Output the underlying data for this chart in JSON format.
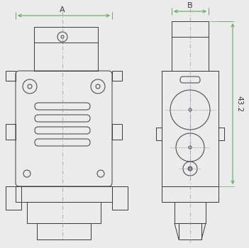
{
  "bg_color": "#ebebeb",
  "line_color": "#3a3a3a",
  "dim_line_color": "#5aaa5a",
  "center_line_color": "#9090a8",
  "label_A": "A",
  "label_B": "B",
  "label_43_2": "43.2",
  "figsize": [
    3.51,
    3.5
  ],
  "dpi": 100
}
